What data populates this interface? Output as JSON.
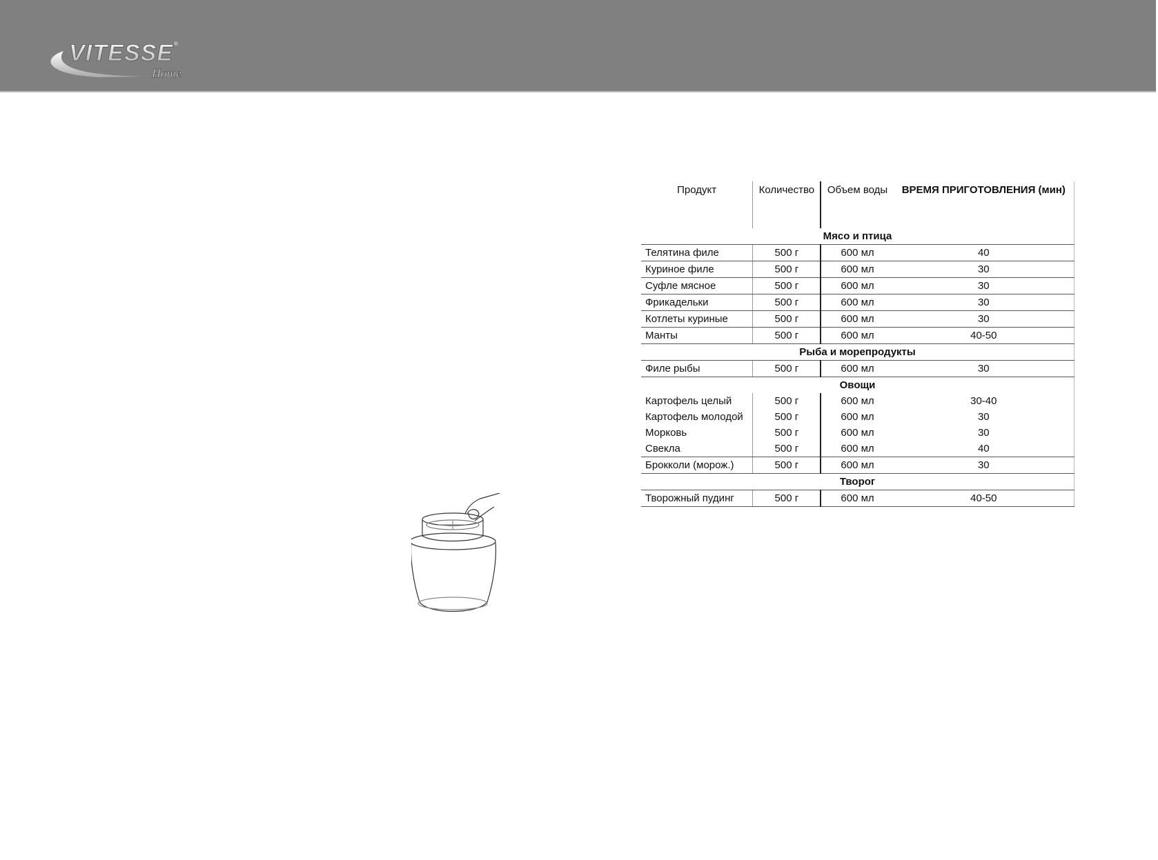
{
  "brand": {
    "logo_text": "VITESSE",
    "logo_sub": "Home"
  },
  "table": {
    "headers": [
      "Продукт",
      "Количество",
      "Объем воды",
      "ВРЕМЯ ПРИГОТОВЛЕНИЯ (мин)"
    ],
    "sections": [
      {
        "title": "Мясо и птица",
        "rows": [
          [
            "Телятина филе",
            "500 г",
            "600 мл",
            "40"
          ],
          [
            "Куриное филе",
            "500 г",
            "600 мл",
            "30"
          ],
          [
            "Суфле мясное",
            "500 г",
            "600 мл",
            "30"
          ],
          [
            "Фрикадельки",
            "500 г",
            "600 мл",
            "30"
          ],
          [
            "Котлеты куриные",
            "500 г",
            "600 мл",
            "30"
          ],
          [
            "Манты",
            "500 г",
            "600 мл",
            "40-50"
          ]
        ]
      },
      {
        "title": "Рыба и морепродукты",
        "rows": [
          [
            "Филе рыбы",
            "500 г",
            "600 мл",
            "30"
          ]
        ]
      },
      {
        "title": "Овощи",
        "rows": [
          [
            "Картофель целый",
            "500 г",
            "600 мл",
            "30-40"
          ],
          [
            "Картофель молодой",
            "500 г",
            "600 мл",
            "30"
          ],
          [
            "Морковь",
            "500 г",
            "600 мл",
            "30"
          ],
          [
            "Свекла",
            "500 г",
            "600 мл",
            "40"
          ],
          [
            "Брокколи (морож.)",
            "500 г",
            "600 мл",
            "30"
          ]
        ]
      },
      {
        "title": "Творог",
        "rows": [
          [
            "Творожный пудинг",
            "500 г",
            "600 мл",
            "40-50"
          ]
        ]
      }
    ]
  }
}
